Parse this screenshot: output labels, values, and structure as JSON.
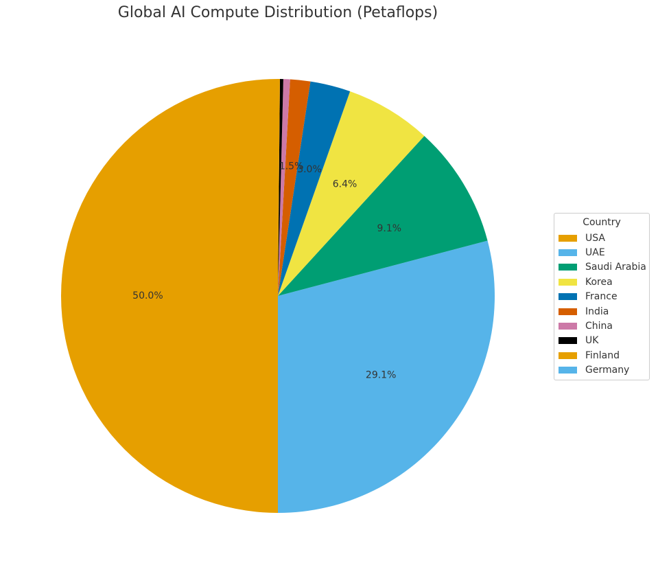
{
  "chart_data": {
    "type": "pie",
    "title": "Global AI Compute Distribution (Petaflops)",
    "legend_title": "Country",
    "legend_position": "right",
    "start_angle_deg": 90,
    "counterclockwise": true,
    "slices": [
      {
        "label": "USA",
        "value": 50.0,
        "pct_label": "50.0%",
        "color": "#E69F00"
      },
      {
        "label": "UAE",
        "value": 29.1,
        "pct_label": "29.1%",
        "color": "#56B4E9"
      },
      {
        "label": "Saudi Arabia",
        "value": 9.1,
        "pct_label": "9.1%",
        "color": "#009E73"
      },
      {
        "label": "Korea",
        "value": 6.4,
        "pct_label": "6.4%",
        "color": "#F0E442"
      },
      {
        "label": "France",
        "value": 3.0,
        "pct_label": "3.0%",
        "color": "#0072B2"
      },
      {
        "label": "India",
        "value": 1.5,
        "pct_label": "1.5%",
        "color": "#D55E00"
      },
      {
        "label": "China",
        "value": 0.5,
        "pct_label": "",
        "color": "#CC79A7"
      },
      {
        "label": "UK",
        "value": 0.25,
        "pct_label": "",
        "color": "#000000"
      },
      {
        "label": "Finland",
        "value": 0.15,
        "pct_label": "",
        "color": "#E69F00"
      },
      {
        "label": "Germany",
        "value": 0.0,
        "pct_label": "",
        "color": "#56B4E9"
      }
    ]
  }
}
